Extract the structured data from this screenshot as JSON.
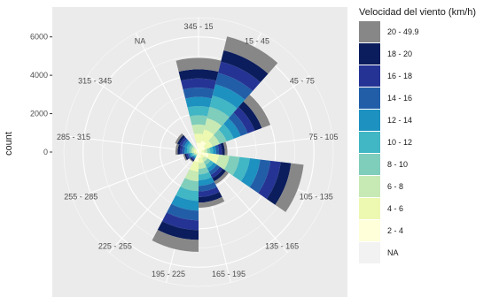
{
  "chart_data": {
    "type": "polar-stacked-bar",
    "y_title": "count",
    "y_ticks": [
      0,
      2000,
      4000,
      6000
    ],
    "y_tick_labels": [
      "0",
      "2000",
      "4000",
      "6000"
    ],
    "sectors": [
      "345 - 15",
      "15 - 45",
      "45 - 75",
      "75 - 105",
      "105 - 135",
      "135 - 165",
      "165 - 195",
      "195 - 225",
      "225 - 255",
      "255 - 285",
      "285 - 315",
      "315 - 345",
      "NA"
    ],
    "speed_bins": [
      "20 - 49.9",
      "18 - 20",
      "16 - 18",
      "14 - 16",
      "12 - 14",
      "10 - 12",
      "8 - 10",
      "6 - 8",
      "4 - 6",
      "2 - 4",
      "NA"
    ],
    "legend_title": "Velocidad del viento (km/h)",
    "colors": {
      "20 - 49.9": "#878787",
      "18 - 20": "#0b1d5c",
      "16 - 18": "#253494",
      "14 - 16": "#225ea8",
      "12 - 14": "#1d91c0",
      "10 - 12": "#41b6c4",
      "8 - 10": "#7fcdbb",
      "6 - 8": "#c7e9b4",
      "4 - 6": "#edf8b1",
      "2 - 4": "#ffffd9",
      "NA": "#f2f2f2"
    },
    "totals": {
      "345 - 15": 4900,
      "15 - 45": 6200,
      "45 - 75": 4000,
      "75 - 105": 1500,
      "105 - 135": 5500,
      "135 - 165": 1900,
      "165 - 195": 2900,
      "195 - 225": 5200,
      "225 - 255": 600,
      "255 - 285": 800,
      "285 - 315": 1200,
      "315 - 345": 1300,
      "NA": 0
    },
    "ylim": [
      0,
      7000
    ]
  }
}
